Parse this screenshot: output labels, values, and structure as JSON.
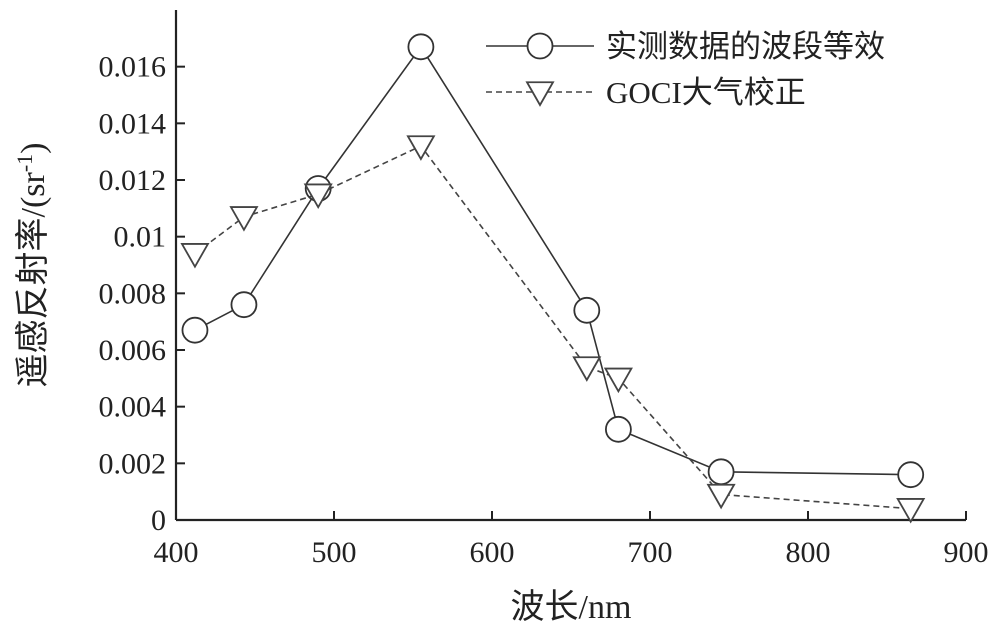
{
  "chart_data": {
    "type": "line",
    "xlabel": "波长/nm",
    "ylabel": "遥感反射率/(sr",
    "ylabel_sup": "-1",
    "ylabel_close": ")",
    "xlim": [
      400,
      900
    ],
    "ylim": [
      0,
      0.018
    ],
    "x_ticks": [
      "400",
      "500",
      "600",
      "700",
      "800",
      "900"
    ],
    "y_ticks": [
      "0",
      "0.002",
      "0.004",
      "0.006",
      "0.008",
      "0.01",
      "0.012",
      "0.014",
      "0.016"
    ],
    "grid": false,
    "legend_position": "top-right",
    "series": [
      {
        "name": "实测数据的波段等效",
        "marker": "circle",
        "line_style": "solid",
        "color": "#333333",
        "x": [
          412,
          443,
          490,
          555,
          660,
          680,
          745,
          865
        ],
        "y": [
          0.0067,
          0.0076,
          0.0117,
          0.0167,
          0.0074,
          0.0032,
          0.0017,
          0.0016
        ]
      },
      {
        "name": "GOCI大气校正",
        "marker": "triangle-down",
        "line_style": "dashed",
        "color": "#444444",
        "x": [
          412,
          443,
          490,
          555,
          660,
          680,
          745,
          865
        ],
        "y": [
          0.0094,
          0.0107,
          0.0115,
          0.0132,
          0.0054,
          0.005,
          0.0009,
          0.0004
        ]
      }
    ]
  }
}
